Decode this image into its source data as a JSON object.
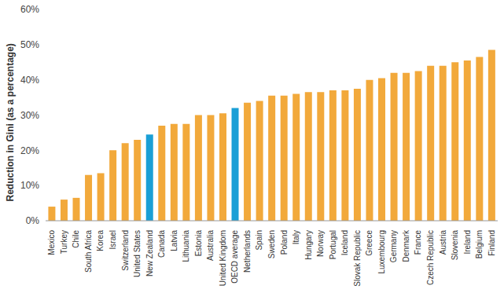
{
  "chart_data": {
    "type": "bar",
    "y_label": "Reduction in Gini (as a percentage)",
    "categories": [
      "Mexico",
      "Turkey",
      "Chile",
      "South Africa",
      "Korea",
      "Israel",
      "Switzerland",
      "United States",
      "New Zealand",
      "Canada",
      "Latvia",
      "Lithuania",
      "Estonia",
      "Australia",
      "United Kingdom",
      "OECD average",
      "Netherlands",
      "Spain",
      "Sweden",
      "Poland",
      "Italy",
      "Hungary",
      "Norway",
      "Portugal",
      "Iceland",
      "Slovak Republic",
      "Greece",
      "Luxembourg",
      "Germany",
      "Denmark",
      "France",
      "Czech Republic",
      "Austria",
      "Slovenia",
      "Ireland",
      "Belgium",
      "Finland"
    ],
    "values": [
      4,
      6,
      6.5,
      13,
      13.5,
      20,
      22,
      23,
      24.5,
      27,
      27.5,
      27.5,
      30,
      30,
      30.5,
      32,
      33.5,
      34,
      35.5,
      35.5,
      36,
      36.5,
      36.5,
      37,
      37,
      37.5,
      40,
      40.5,
      42,
      42,
      42.5,
      44,
      44,
      45,
      45.5,
      46.5,
      48.5
    ],
    "colors": [
      "#f2a93b",
      "#f2a93b",
      "#f2a93b",
      "#f2a93b",
      "#f2a93b",
      "#f2a93b",
      "#f2a93b",
      "#f2a93b",
      "#1a9fd6",
      "#f2a93b",
      "#f2a93b",
      "#f2a93b",
      "#f2a93b",
      "#f2a93b",
      "#f2a93b",
      "#1a9fd6",
      "#f2a93b",
      "#f2a93b",
      "#f2a93b",
      "#f2a93b",
      "#f2a93b",
      "#f2a93b",
      "#f2a93b",
      "#f2a93b",
      "#f2a93b",
      "#f2a93b",
      "#f2a93b",
      "#f2a93b",
      "#f2a93b",
      "#f2a93b",
      "#f2a93b",
      "#f2a93b",
      "#f2a93b",
      "#f2a93b",
      "#f2a93b",
      "#f2a93b",
      "#f2a93b"
    ],
    "ylim": [
      0,
      60
    ],
    "yticks": [
      {
        "value": 0,
        "label": "0%"
      },
      {
        "value": 10,
        "label": "10%"
      },
      {
        "value": 20,
        "label": "20%"
      },
      {
        "value": 30,
        "label": "30%"
      },
      {
        "value": 40,
        "label": "40%"
      },
      {
        "value": 50,
        "label": "50%"
      },
      {
        "value": 60,
        "label": "60%"
      }
    ],
    "grid": false
  }
}
